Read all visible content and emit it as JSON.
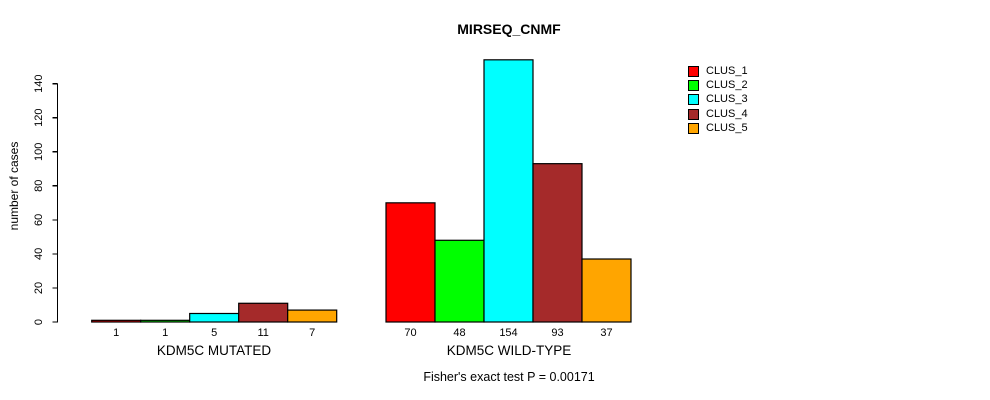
{
  "title": "MIRSEQ_CNMF",
  "footer": "Fisher's exact test P = 0.00171",
  "chart_data": {
    "type": "bar",
    "title": "MIRSEQ_CNMF",
    "xlabel": "",
    "ylabel": "number of cases",
    "yticks": [
      0,
      20,
      40,
      60,
      80,
      100,
      120,
      140
    ],
    "ylim": [
      0,
      157
    ],
    "grid": false,
    "legend_position": "top-right",
    "categories": [
      "KDM5C MUTATED",
      "KDM5C WILD-TYPE"
    ],
    "series": [
      {
        "name": "CLUS_1",
        "color": "#ff0000",
        "values": [
          1,
          70
        ]
      },
      {
        "name": "CLUS_2",
        "color": "#00ff00",
        "values": [
          1,
          48
        ]
      },
      {
        "name": "CLUS_3",
        "color": "#00ffff",
        "values": [
          5,
          154
        ]
      },
      {
        "name": "CLUS_4",
        "color": "#a52a2a",
        "values": [
          11,
          93
        ]
      },
      {
        "name": "CLUS_5",
        "color": "#ffa500",
        "values": [
          7,
          37
        ]
      }
    ],
    "groups": [
      {
        "label": "KDM5C MUTATED",
        "values": [
          1,
          1,
          5,
          11,
          7
        ]
      },
      {
        "label": "KDM5C WILD-TYPE",
        "values": [
          70,
          48,
          154,
          93,
          37
        ]
      }
    ],
    "legend": [
      {
        "label": "CLUS_1",
        "color": "#ff0000"
      },
      {
        "label": "CLUS_2",
        "color": "#00ff00"
      },
      {
        "label": "CLUS_3",
        "color": "#00ffff"
      },
      {
        "label": "CLUS_4",
        "color": "#a52a2a"
      },
      {
        "label": "CLUS_5",
        "color": "#ffa500"
      }
    ],
    "bar_border_color": "#000000",
    "annotation": "Fisher's exact test P = 0.00171"
  }
}
